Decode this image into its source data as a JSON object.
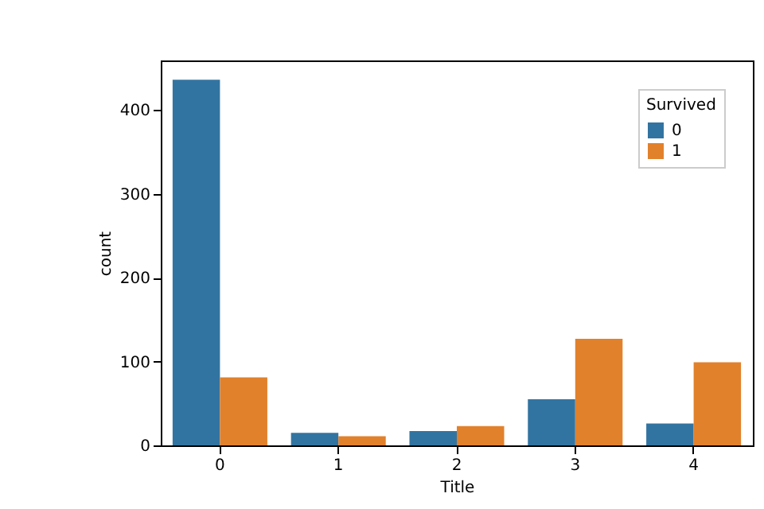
{
  "chart_data": {
    "type": "bar",
    "xlabel": "Title",
    "ylabel": "count",
    "legend_title": "Survived",
    "categories": [
      "0",
      "1",
      "2",
      "3",
      "4"
    ],
    "series": [
      {
        "name": "0",
        "color": "#3274a1",
        "values": [
          436,
          15,
          17,
          55,
          26
        ]
      },
      {
        "name": "1",
        "color": "#e1812c",
        "values": [
          81,
          11,
          23,
          127,
          99
        ]
      }
    ],
    "ylim": [
      0,
      459
    ],
    "yticks": [
      0,
      100,
      200,
      300,
      400
    ],
    "grid": false,
    "legend": "top right"
  }
}
